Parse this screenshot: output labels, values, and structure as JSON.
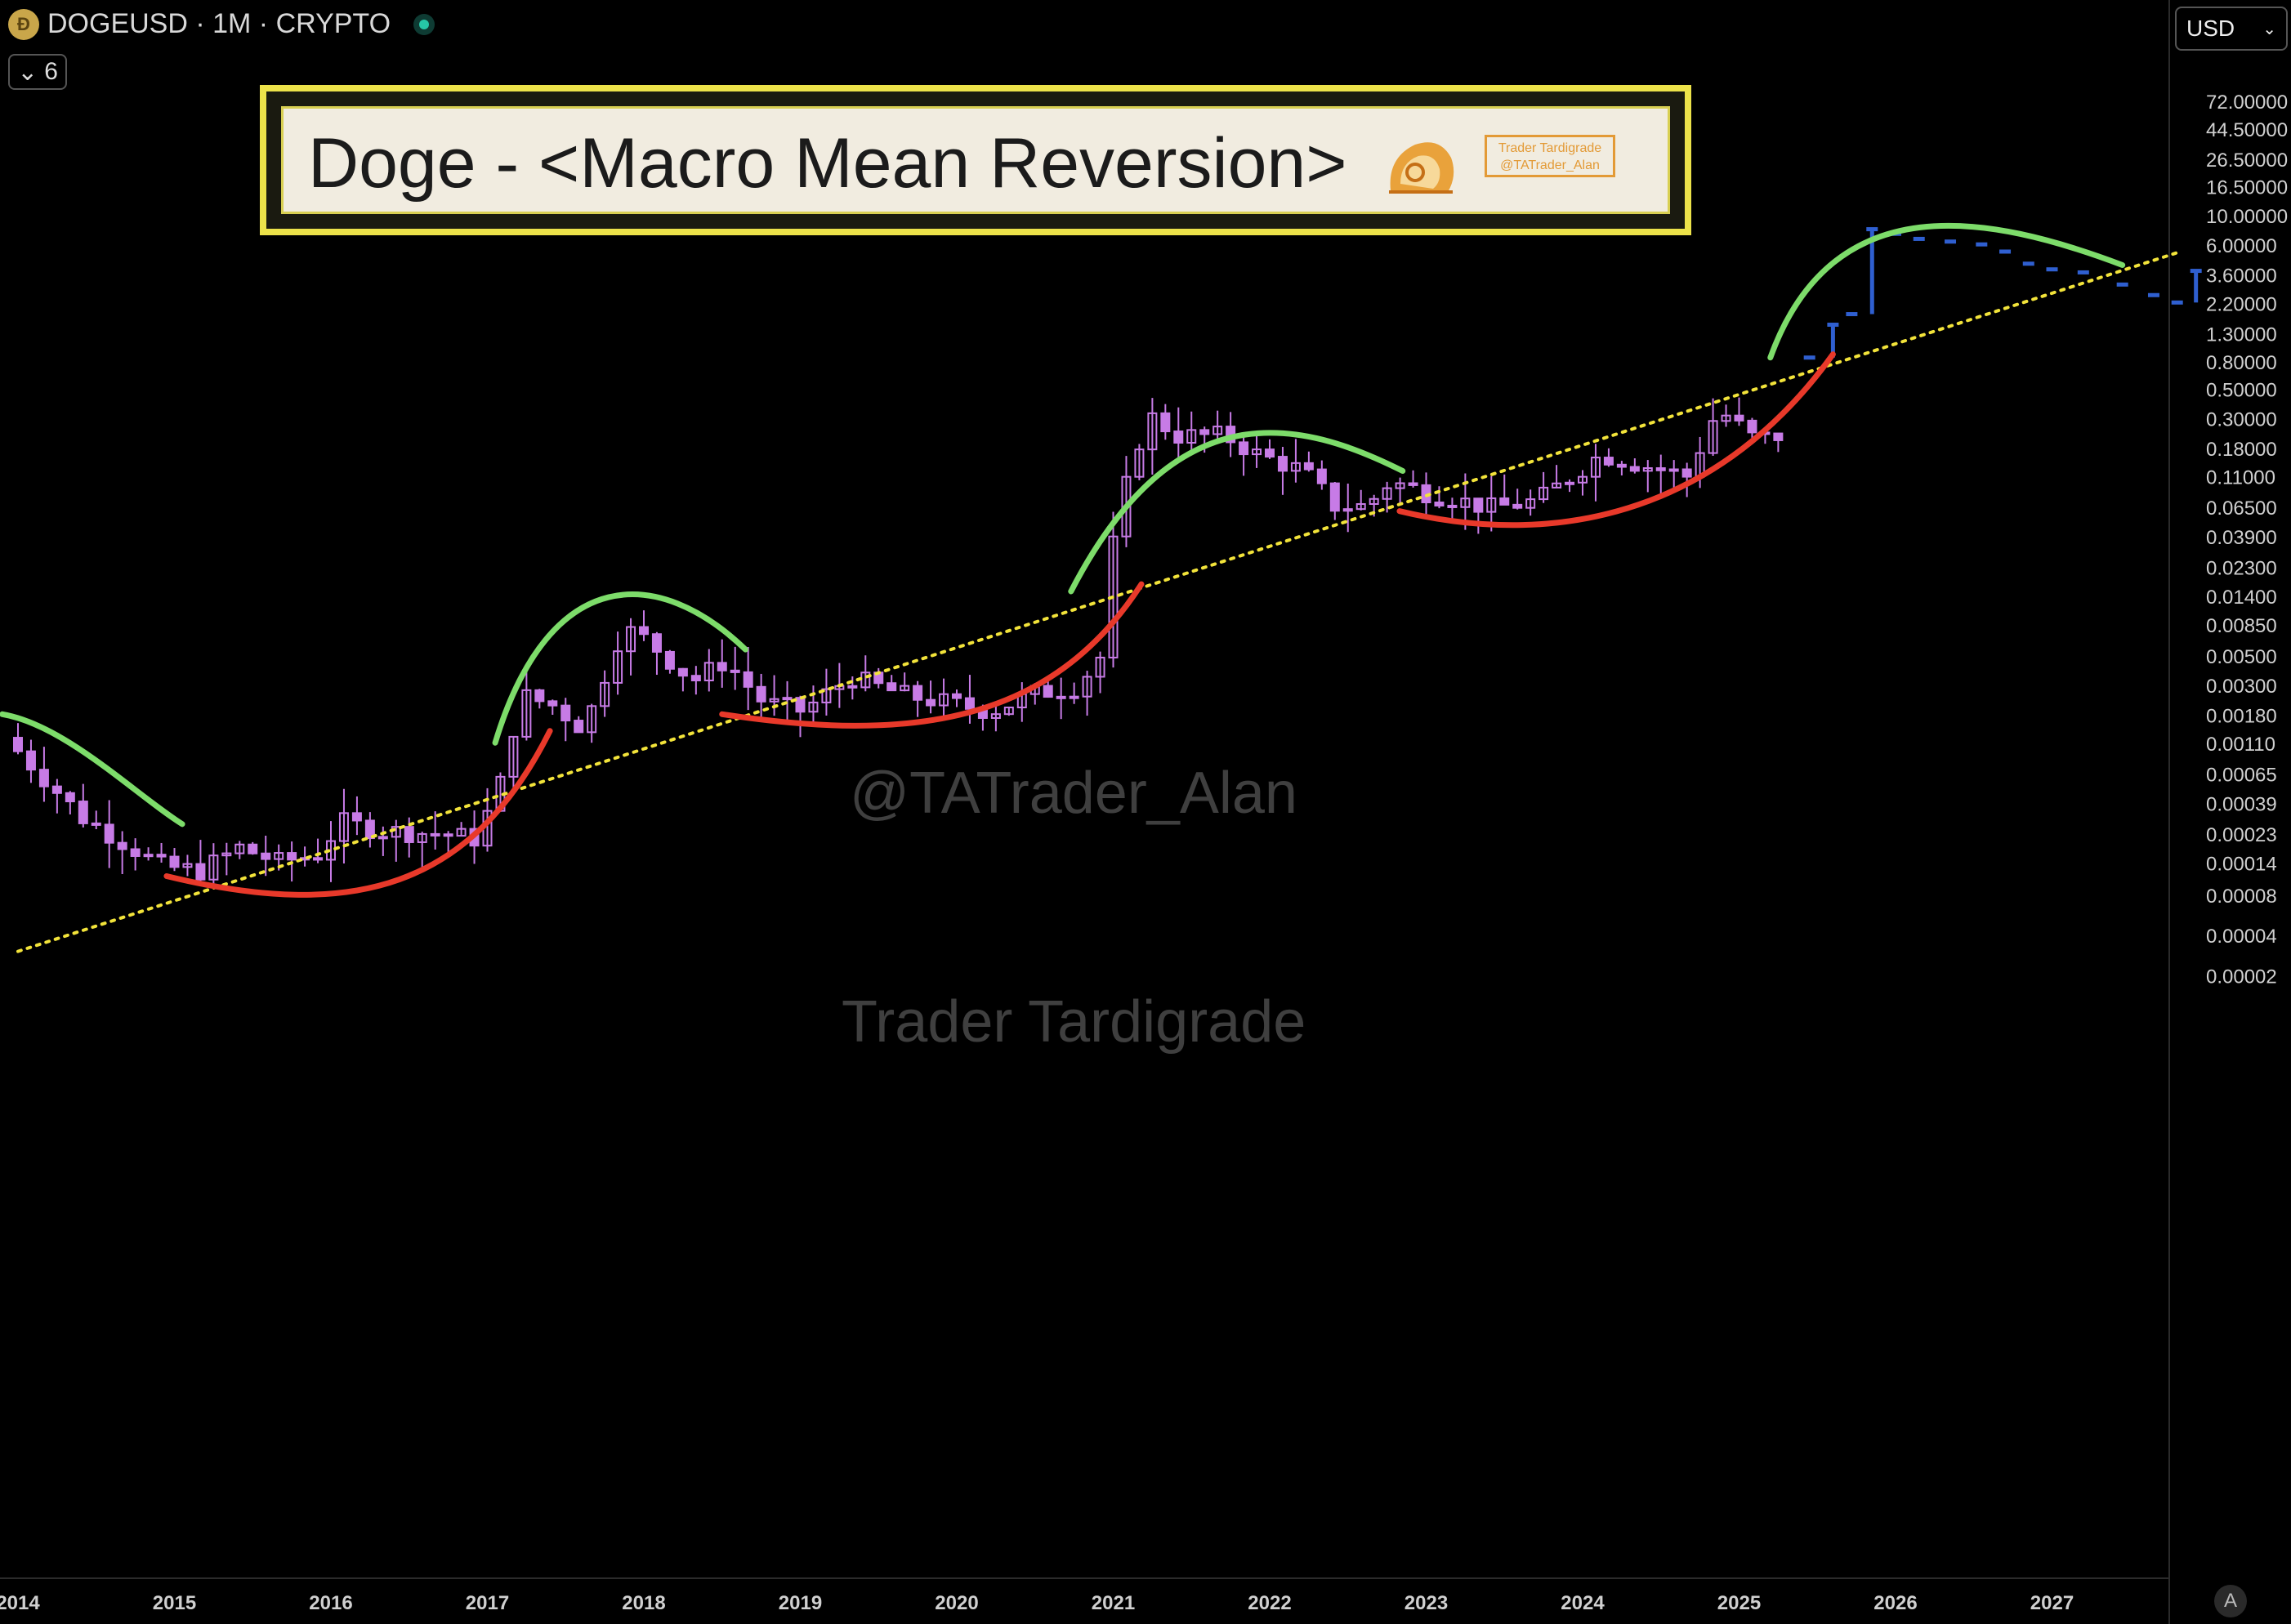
{
  "header": {
    "symbol_line": "DOGEUSD · 1M · CRYPTO",
    "coin_icon": "doge-coin-icon",
    "layers_count": "6",
    "currency": "USD"
  },
  "title_box": {
    "title": "Doge - <Macro Mean Reversion>",
    "brand_line1": "Trader Tardigrade",
    "brand_line2": "@TATrader_Alan"
  },
  "watermarks": {
    "handle": "@TATrader_Alan",
    "name": "Trader Tardigrade"
  },
  "colors": {
    "candle": "#c77be6",
    "projection": "#2f5fd0",
    "peak_arc": "#7ddc6a",
    "trough_arc": "#e8392a",
    "trendline": "#f2e33a",
    "title_border": "#ece24a"
  },
  "chart_data": {
    "type": "candlestick",
    "scale": "log",
    "timeframe": "1M",
    "ylim": [
      1.5e-05,
      120
    ],
    "xlim": [
      2014.0,
      2027.8
    ],
    "yticks": [
      "72.00000",
      "44.50000",
      "26.50000",
      "16.50000",
      "10.00000",
      "6.00000",
      "3.60000",
      "2.20000",
      "1.30000",
      "0.80000",
      "0.50000",
      "0.30000",
      "0.18000",
      "0.11000",
      "0.06500",
      "0.03900",
      "0.02300",
      "0.01400",
      "0.00850",
      "0.00500",
      "0.00300",
      "0.00180",
      "0.00110",
      "0.00065",
      "0.00039",
      "0.00023",
      "0.00014",
      "0.00008",
      "0.00004",
      "0.00002"
    ],
    "xticks": [
      "2014",
      "2015",
      "2016",
      "2017",
      "2018",
      "2019",
      "2020",
      "2021",
      "2022",
      "2023",
      "2024",
      "2025",
      "2026",
      "2027"
    ],
    "trendline": {
      "from": {
        "x": 2014.0,
        "y": 3e-05
      },
      "to": {
        "x": 2027.8,
        "y": 5.2
      }
    },
    "history_anchors": [
      [
        2014.0,
        0.0012
      ],
      [
        2014.25,
        0.0006
      ],
      [
        2014.5,
        0.0003
      ],
      [
        2014.75,
        0.0002
      ],
      [
        2015.0,
        0.00013
      ],
      [
        2015.25,
        0.00012
      ],
      [
        2015.5,
        0.00018
      ],
      [
        2015.75,
        0.00014
      ],
      [
        2016.0,
        0.00016
      ],
      [
        2016.15,
        0.00028
      ],
      [
        2016.4,
        0.00024
      ],
      [
        2016.75,
        0.00023
      ],
      [
        2017.0,
        0.00021
      ],
      [
        2017.15,
        0.00045
      ],
      [
        2017.3,
        0.0025
      ],
      [
        2017.5,
        0.0021
      ],
      [
        2017.7,
        0.0014
      ],
      [
        2017.95,
        0.008
      ],
      [
        2018.1,
        0.0065
      ],
      [
        2018.4,
        0.0032
      ],
      [
        2018.6,
        0.0045
      ],
      [
        2018.85,
        0.0022
      ],
      [
        2019.1,
        0.0019
      ],
      [
        2019.4,
        0.0034
      ],
      [
        2019.75,
        0.0025
      ],
      [
        2020.1,
        0.0021
      ],
      [
        2020.3,
        0.0019
      ],
      [
        2020.6,
        0.0026
      ],
      [
        2020.85,
        0.0029
      ],
      [
        2021.0,
        0.0048
      ],
      [
        2021.1,
        0.05
      ],
      [
        2021.3,
        0.32
      ],
      [
        2021.5,
        0.22
      ],
      [
        2021.8,
        0.22
      ],
      [
        2022.0,
        0.16
      ],
      [
        2022.3,
        0.12
      ],
      [
        2022.5,
        0.066
      ],
      [
        2022.7,
        0.065
      ],
      [
        2022.85,
        0.1
      ],
      [
        2023.1,
        0.082
      ],
      [
        2023.5,
        0.063
      ],
      [
        2023.8,
        0.072
      ],
      [
        2024.2,
        0.16
      ],
      [
        2024.5,
        0.13
      ],
      [
        2024.75,
        0.11
      ],
      [
        2024.95,
        0.35
      ],
      [
        2025.2,
        0.2
      ],
      [
        2025.3,
        0.22
      ]
    ],
    "projection": [
      [
        2025.45,
        0.85
      ],
      [
        2025.6,
        1.5
      ],
      [
        2025.72,
        1.8
      ],
      [
        2025.85,
        7.8
      ],
      [
        2026.0,
        7.2
      ],
      [
        2026.15,
        6.6
      ],
      [
        2026.35,
        6.3
      ],
      [
        2026.55,
        6.0
      ],
      [
        2026.7,
        5.3
      ],
      [
        2026.85,
        4.3
      ],
      [
        2027.0,
        3.9
      ],
      [
        2027.2,
        3.7
      ],
      [
        2027.45,
        3.0
      ],
      [
        2027.65,
        2.5
      ],
      [
        2027.8,
        2.2
      ],
      [
        2027.92,
        3.8
      ]
    ],
    "peak_arcs": [
      [
        [
          2013.9,
          0.0018
        ],
        [
          2014.3,
          0.0015
        ],
        [
          2014.75,
          0.00045
        ],
        [
          2015.05,
          0.00027
        ]
      ],
      [
        [
          2017.05,
          0.0011
        ],
        [
          2017.4,
          0.025
        ],
        [
          2018.1,
          0.023
        ],
        [
          2018.65,
          0.0055
        ]
      ],
      [
        [
          2020.73,
          0.015
        ],
        [
          2021.4,
          0.5
        ],
        [
          2022.2,
          0.29
        ],
        [
          2022.85,
          0.12
        ]
      ],
      [
        [
          2025.2,
          0.85
        ],
        [
          2025.6,
          17
        ],
        [
          2026.6,
          10
        ],
        [
          2027.45,
          4.2
        ]
      ]
    ],
    "trough_arcs": [
      [
        [
          2014.95,
          0.00011
        ],
        [
          2016.15,
          5e-05
        ],
        [
          2016.9,
          9e-05
        ],
        [
          2017.4,
          0.00135
        ]
      ],
      [
        [
          2018.5,
          0.0018
        ],
        [
          2019.7,
          0.0011
        ],
        [
          2020.6,
          0.0015
        ],
        [
          2021.18,
          0.017
        ]
      ],
      [
        [
          2022.83,
          0.06
        ],
        [
          2023.9,
          0.03
        ],
        [
          2024.9,
          0.065
        ],
        [
          2025.6,
          0.9
        ]
      ]
    ]
  }
}
